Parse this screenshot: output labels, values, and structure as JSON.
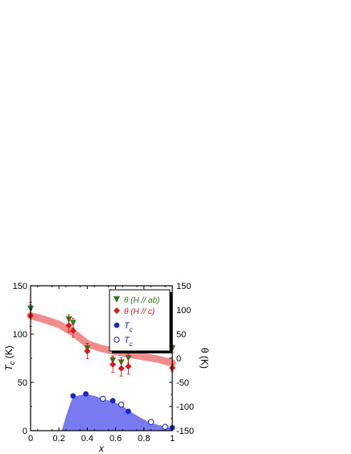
{
  "chart_data": {
    "type": "scatter",
    "xlabel": "x",
    "ylabel_left": "T_c (K)",
    "ylabel_right": "θ (K)",
    "xlim": [
      0,
      1
    ],
    "ylim_left": [
      0,
      150
    ],
    "ylim_right": [
      -150,
      150
    ],
    "xticks": [
      "0",
      "0.2",
      "0.4",
      "0.6",
      "0.8",
      "1"
    ],
    "yticks_left": [
      "0",
      "50",
      "100",
      "150"
    ],
    "yticks_right": [
      "-150",
      "-100",
      "-50",
      "0",
      "50",
      "100",
      "150"
    ],
    "colors": {
      "theta_ab": "#2e7d1e",
      "theta_c": "#e01414",
      "tc": "#1428c8",
      "trend": "#f08080",
      "tc_area": "#6a6af0",
      "errorbar": "#e01414"
    },
    "legend": {
      "position": "top-right",
      "entries": [
        {
          "prefix": "θ (",
          "main": "H",
          "suffix": " // ab)",
          "color": "#2e7d1e",
          "marker": "triangle-down"
        },
        {
          "prefix": "θ (",
          "main": "H",
          "suffix": " // c)",
          "color": "#e01414",
          "marker": "diamond"
        },
        {
          "main": "T",
          "sub": "c",
          "color": "#1428c8",
          "marker": "circle-filled"
        },
        {
          "main": "T",
          "sub": "c",
          "color": "#1428c8",
          "marker": "circle-open"
        }
      ]
    },
    "series": [
      {
        "name": "θ (H // ab)",
        "axis": "right",
        "marker": "triangle-down",
        "x": [
          0,
          0.27,
          0.3,
          0.4,
          0.58,
          0.64,
          0.69,
          1.0
        ],
        "y": [
          102,
          80,
          73,
          20,
          -5,
          -9,
          0,
          20
        ],
        "err": [
          14,
          10,
          10,
          10,
          10,
          10,
          10,
          8
        ]
      },
      {
        "name": "θ (H // c)",
        "axis": "right",
        "marker": "diamond",
        "x": [
          0,
          0.27,
          0.3,
          0.4,
          0.58,
          0.64,
          0.69,
          1.0
        ],
        "y": [
          88,
          68,
          57,
          15,
          -13,
          -21,
          -17,
          -20
        ],
        "err": [
          22,
          14,
          14,
          16,
          16,
          16,
          16,
          8
        ]
      },
      {
        "name": "T_c (filled)",
        "axis": "left",
        "marker": "circle-filled",
        "x": [
          0.3,
          0.39,
          0.58,
          0.69,
          1.0
        ],
        "y": [
          36,
          38,
          31,
          20,
          3
        ]
      },
      {
        "name": "T_c (open)",
        "axis": "left",
        "marker": "circle-open",
        "x": [
          0.51,
          0.64,
          0.85,
          0.95
        ],
        "y": [
          33,
          27,
          9,
          4
        ]
      }
    ],
    "trend_band": {
      "axis": "right",
      "x": [
        0,
        0.1,
        0.2,
        0.3,
        0.4,
        0.5,
        0.6,
        0.7,
        0.8,
        0.9,
        1.0
      ],
      "y": [
        88,
        80,
        70,
        53,
        30,
        20,
        14,
        8,
        3,
        -2,
        -10
      ]
    },
    "tc_area": {
      "axis": "left",
      "x": [
        0.22,
        0.25,
        0.28,
        0.3,
        0.39,
        0.45,
        0.51,
        0.58,
        0.64,
        0.69,
        0.78,
        0.85,
        0.95,
        1.0
      ],
      "y": [
        0,
        15,
        28,
        35,
        38,
        36,
        33,
        30,
        27,
        21,
        13,
        8,
        4,
        3
      ]
    }
  }
}
